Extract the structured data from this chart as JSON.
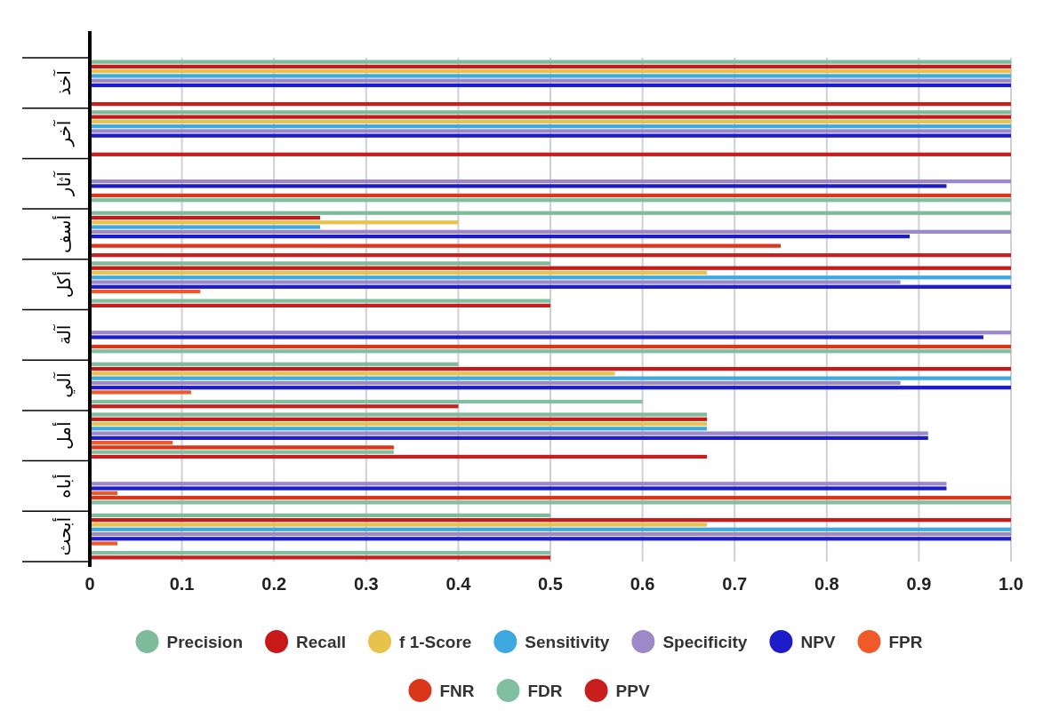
{
  "chart_data": {
    "type": "bar",
    "orientation": "horizontal",
    "categories": [
      "آخذ",
      "آخر",
      "آثار",
      "أسف",
      "أكل",
      "آلة",
      "آلي",
      "أمل",
      "أباه",
      "أبحث"
    ],
    "series": [
      {
        "name": "Precision",
        "color": "#7dbb9a",
        "values": [
          1,
          1,
          0,
          1,
          0.5,
          0,
          0.4,
          0.67,
          0,
          0.5
        ]
      },
      {
        "name": "Recall",
        "color": "#c81818",
        "values": [
          1,
          1,
          0,
          0.25,
          1,
          0,
          1,
          0.67,
          0,
          1
        ]
      },
      {
        "name": "f 1-Score",
        "color": "#e8c24a",
        "values": [
          1,
          1,
          0,
          0.4,
          0.67,
          0,
          0.57,
          0.67,
          0,
          0.67
        ]
      },
      {
        "name": "Sensitivity",
        "color": "#3ea8e0",
        "values": [
          1,
          1,
          0,
          0.25,
          1,
          0,
          1,
          0.67,
          0,
          1
        ]
      },
      {
        "name": "Specificity",
        "color": "#9d88c8",
        "values": [
          1,
          1,
          1,
          1,
          0.88,
          1,
          0.88,
          0.91,
          0.93,
          1
        ]
      },
      {
        "name": "NPV",
        "color": "#1c1cc8",
        "values": [
          1,
          1,
          0.93,
          0.89,
          1,
          0.97,
          1,
          0.91,
          0.93,
          1
        ]
      },
      {
        "name": "FPR",
        "color": "#f05a28",
        "values": [
          0,
          0,
          0,
          0,
          0.12,
          0,
          0.11,
          0.09,
          0.03,
          0.03
        ]
      },
      {
        "name": "FNR",
        "color": "#d9361a",
        "values": [
          0,
          0,
          1,
          0.75,
          0,
          1,
          0,
          0.33,
          1,
          0
        ]
      },
      {
        "name": "FDR",
        "color": "#80c0a0",
        "values": [
          0,
          0,
          1,
          0,
          0.5,
          1,
          0.6,
          0.33,
          1,
          0.5
        ]
      },
      {
        "name": "PPV",
        "color": "#c81e1e",
        "values": [
          1,
          1,
          0,
          1,
          0.5,
          0,
          0.4,
          0.67,
          0,
          0.5
        ]
      }
    ],
    "xlim": [
      0,
      1
    ],
    "xticks": [
      0,
      0.1,
      0.2,
      0.3,
      0.4,
      0.5,
      0.6,
      0.7,
      0.8,
      0.9,
      {
        "value": 1,
        "label": "1.0"
      }
    ],
    "grid": "x",
    "legend": "bottom"
  }
}
